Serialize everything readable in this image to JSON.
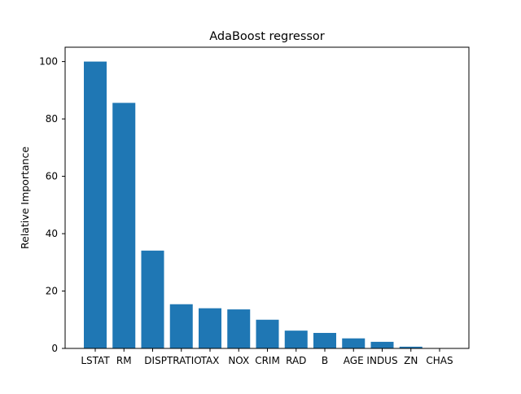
{
  "chart_data": {
    "type": "bar",
    "title": "AdaBoost regressor",
    "xlabel": "",
    "ylabel": "Relative Importance",
    "categories": [
      "LSTAT",
      "RM",
      "DIS",
      "PTRATIO",
      "TAX",
      "NOX",
      "CRIM",
      "RAD",
      "B",
      "AGE",
      "INDUS",
      "ZN",
      "CHAS"
    ],
    "values": [
      100,
      85.6,
      34.1,
      15.4,
      14.0,
      13.6,
      10.0,
      6.2,
      5.4,
      3.5,
      2.3,
      0.6,
      0.0
    ],
    "ylim": [
      0,
      105
    ],
    "yticks": [
      0,
      20,
      40,
      60,
      80,
      100
    ],
    "grid": false,
    "bar_color": "#1f77b4"
  }
}
